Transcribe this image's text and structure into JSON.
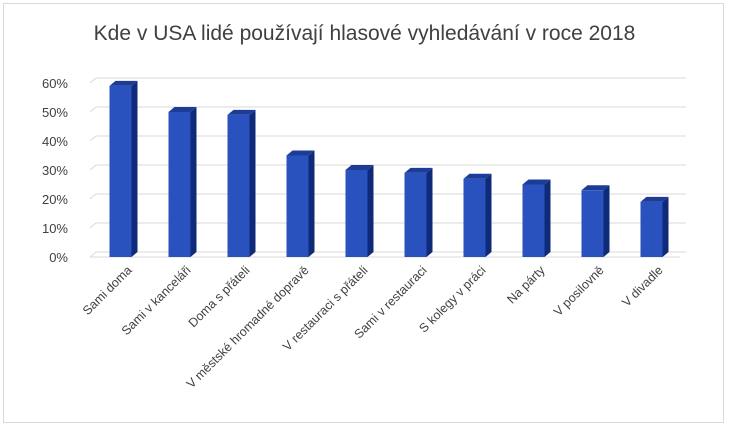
{
  "chart_data": {
    "type": "bar",
    "title": "Kde v USA lidé používají hlasové vyhledávání v roce 2018",
    "xlabel": "",
    "ylabel": "",
    "categories": [
      "Sami doma",
      "Sami v kanceláři",
      "Doma s přáteli",
      "V městské hromadné dopravě",
      "V restauraci s přáteli",
      "Sami v restauraci",
      "S kolegy v práci",
      "Na párty",
      "V posilovně",
      "V divadle"
    ],
    "values": [
      59,
      50,
      49,
      35,
      30,
      29,
      27,
      25,
      23,
      19
    ],
    "ylim": [
      0,
      60
    ],
    "yticks": [
      "0%",
      "10%",
      "20%",
      "30%",
      "40%",
      "50%",
      "60%"
    ],
    "grid": true,
    "legend": "none",
    "colors": {
      "bar_front": "#2a52be",
      "bar_side": "#0f2a78",
      "bar_top": "#1c3c98",
      "grid": "#d9d9d9"
    }
  }
}
